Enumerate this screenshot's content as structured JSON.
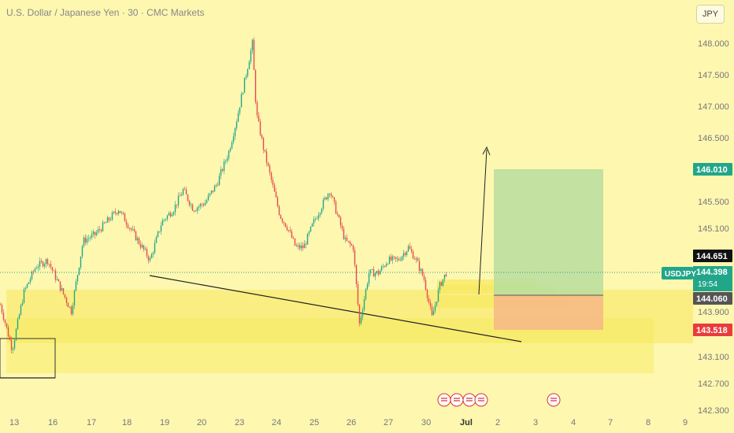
{
  "header": {
    "title": "U.S. Dollar / Japanese Yen · 30 · CMC Markets",
    "currency_button": "JPY"
  },
  "chart_data": {
    "type": "candlestick",
    "symbol": "USDJPY",
    "ylim": [
      142.3,
      148.5
    ],
    "price_ticks": [
      "148.000",
      "147.500",
      "147.000",
      "146.500",
      "146.010",
      "145.500",
      "145.100",
      "144.651",
      "144.398",
      "144.060",
      "143.518",
      "143.100",
      "142.700",
      "142.300"
    ],
    "x_ticks": [
      "13",
      "16",
      "17",
      "18",
      "19",
      "20",
      "23",
      "24",
      "25",
      "26",
      "27",
      "30",
      "Jul",
      "2",
      "3",
      "4",
      "7",
      "8",
      "9"
    ],
    "labels": {
      "symbol_tag": "USDJPY",
      "last_price": "144.398",
      "countdown": "19:54",
      "target": "146.010",
      "entry": "144.060",
      "stop": "143.518",
      "crosshair": "144.651"
    },
    "path": [
      [
        0,
        143.9
      ],
      [
        15,
        143.2
      ],
      [
        30,
        144.1
      ],
      [
        45,
        144.5
      ],
      [
        60,
        144.6
      ],
      [
        75,
        144.2
      ],
      [
        90,
        143.8
      ],
      [
        105,
        144.9
      ],
      [
        120,
        145.0
      ],
      [
        135,
        145.2
      ],
      [
        150,
        145.4
      ],
      [
        165,
        145.1
      ],
      [
        175,
        144.9
      ],
      [
        190,
        144.6
      ],
      [
        205,
        145.2
      ],
      [
        220,
        145.4
      ],
      [
        232,
        145.7
      ],
      [
        245,
        145.4
      ],
      [
        260,
        145.5
      ],
      [
        275,
        145.8
      ],
      [
        290,
        146.3
      ],
      [
        300,
        146.8
      ],
      [
        310,
        147.4
      ],
      [
        320,
        148.0
      ],
      [
        325,
        146.9
      ],
      [
        335,
        146.3
      ],
      [
        345,
        145.8
      ],
      [
        355,
        145.3
      ],
      [
        365,
        145.1
      ],
      [
        375,
        144.8
      ],
      [
        385,
        144.8
      ],
      [
        398,
        145.2
      ],
      [
        410,
        145.5
      ],
      [
        418,
        145.7
      ],
      [
        428,
        145.3
      ],
      [
        438,
        144.9
      ],
      [
        448,
        144.8
      ],
      [
        456,
        143.6
      ],
      [
        468,
        144.4
      ],
      [
        480,
        144.4
      ],
      [
        492,
        144.6
      ],
      [
        505,
        144.6
      ],
      [
        518,
        144.8
      ],
      [
        528,
        144.6
      ],
      [
        538,
        144.3
      ],
      [
        548,
        143.7
      ],
      [
        558,
        144.2
      ],
      [
        566,
        144.4
      ]
    ],
    "colors": {
      "up": "#22a68a",
      "down": "#e54b4b",
      "profit_zone": "#b8dd9f",
      "loss_zone": "#f6ba85",
      "support_zone": "#f7e85c",
      "price_up_tag": "#22a68a",
      "target_tag": "#22a68a",
      "stop_tag": "#ea3b3b",
      "crosshair_tag": "#111111",
      "entry_tag": "#555555"
    }
  },
  "events": {
    "icons": [
      "lightning-icon",
      "us-flag-icon",
      "us-flag-icon",
      "us-flag-icon",
      "us-flag-icon"
    ]
  }
}
